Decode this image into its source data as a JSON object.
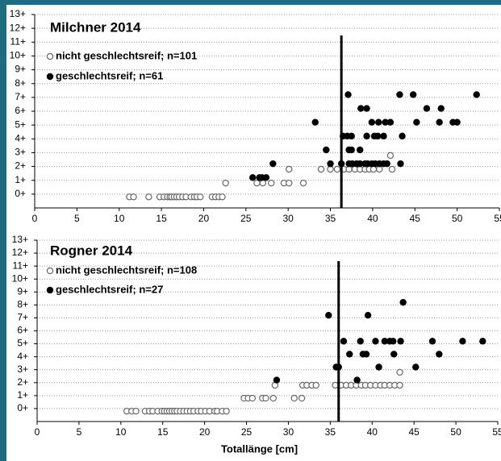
{
  "chart_data": [
    {
      "type": "scatter",
      "title": "Milchner 2014",
      "series": [
        {
          "name": "nicht geschlechtsreif; n=101",
          "color": "#666666",
          "marker": "open",
          "x": [
            11.2,
            11.7,
            13.5,
            14.8,
            15.3,
            15.7,
            16.0,
            16.2,
            16.5,
            16.8,
            17.1,
            17.5,
            17.9,
            18.5,
            18.9,
            19.2,
            19.6,
            21.0,
            21.4,
            21.8,
            22.2,
            22.6,
            26.3,
            27.0,
            28.0,
            29.5,
            30.1,
            31.8,
            30.1,
            33.9,
            35.0,
            35.8,
            36.6,
            37.2,
            37.9,
            38.5,
            39.1,
            39.6,
            40.1,
            40.8,
            42.3,
            42.1
          ],
          "values": [
            -0.2,
            -0.2,
            -0.2,
            -0.2,
            -0.2,
            -0.2,
            -0.2,
            -0.2,
            -0.2,
            -0.2,
            -0.2,
            -0.2,
            -0.2,
            -0.2,
            -0.2,
            -0.2,
            -0.2,
            -0.2,
            -0.2,
            -0.2,
            -0.2,
            0.8,
            0.8,
            0.8,
            0.8,
            0.8,
            0.8,
            0.8,
            1.8,
            1.8,
            1.8,
            1.8,
            1.8,
            1.8,
            1.8,
            1.8,
            1.8,
            1.8,
            1.8,
            1.8,
            1.8,
            2.8
          ]
        },
        {
          "name": "geschlechtsreif; n=61",
          "color": "#000000",
          "marker": "filled",
          "x": [
            25.8,
            26.6,
            26.9,
            27.4,
            28.2,
            35.0,
            36.3,
            37.2,
            37.6,
            38.1,
            38.5,
            39.1,
            39.4,
            39.9,
            40.3,
            40.8,
            41.3,
            41.7,
            43.3,
            34.5,
            37.2,
            37.5,
            38.5,
            36.5,
            37.0,
            37.5,
            39.3,
            40.2,
            40.6,
            41.3,
            43.5,
            33.2,
            39.9,
            40.7,
            41.5,
            42.1,
            45.2,
            47.9,
            49.5,
            50.0,
            38.6,
            39.3,
            46.4,
            48.1,
            37.1,
            43.2,
            44.8,
            52.3
          ],
          "values": [
            1.2,
            1.2,
            1.2,
            1.2,
            2.2,
            2.2,
            2.2,
            2.2,
            2.2,
            2.2,
            2.2,
            2.2,
            2.2,
            2.2,
            2.2,
            2.2,
            2.2,
            2.2,
            2.2,
            3.2,
            3.2,
            3.2,
            3.2,
            4.2,
            4.2,
            4.2,
            4.2,
            4.2,
            4.2,
            4.2,
            4.2,
            5.2,
            5.2,
            5.2,
            5.2,
            5.2,
            5.2,
            5.2,
            5.2,
            5.2,
            6.2,
            6.2,
            6.2,
            6.2,
            7.2,
            7.2,
            7.2,
            7.2
          ]
        }
      ],
      "vline": 36.3,
      "xlim": [
        0,
        55
      ],
      "xticks": [
        0,
        5,
        10,
        15,
        20,
        25,
        30,
        35,
        40,
        45,
        50,
        55
      ],
      "ylim": [
        -1,
        13
      ],
      "yticks": [
        {
          "value": 0,
          "label": "0+"
        },
        {
          "value": 1,
          "label": "1+"
        },
        {
          "value": 2,
          "label": "2+"
        },
        {
          "value": 3,
          "label": "3+"
        },
        {
          "value": 4,
          "label": "4+"
        },
        {
          "value": 5,
          "label": "5+"
        },
        {
          "value": 6,
          "label": "6+"
        },
        {
          "value": 7,
          "label": "7+"
        },
        {
          "value": 8,
          "label": "8+"
        },
        {
          "value": 9,
          "label": "9+"
        },
        {
          "value": 10,
          "label": "10+"
        },
        {
          "value": 11,
          "label": "11+"
        },
        {
          "value": 12,
          "label": "12+"
        },
        {
          "value": 13,
          "label": "13+"
        }
      ],
      "grid": true
    },
    {
      "type": "scatter",
      "title": "Rogner 2014",
      "xlabel": "Totallänge [cm]",
      "series": [
        {
          "name": "nicht geschlechtsreif; n=108",
          "color": "#666666",
          "marker": "open",
          "x": [
            10.7,
            11.3,
            11.8,
            12.9,
            13.4,
            13.8,
            14.4,
            14.9,
            15.2,
            15.5,
            15.8,
            16.1,
            16.4,
            16.7,
            17.1,
            17.5,
            17.9,
            18.3,
            18.7,
            19.2,
            19.6,
            20.1,
            20.6,
            21.2,
            21.5,
            22.1,
            22.6,
            24.7,
            25.2,
            25.7,
            26.9,
            27.3,
            28.2,
            30.7,
            31.6,
            28.4,
            31.7,
            32.2,
            32.8,
            33.3,
            35.6,
            36.3,
            36.9,
            37.5,
            38.1,
            38.7,
            39.2,
            39.8,
            40.4,
            41.0,
            41.5,
            42.1,
            42.7,
            43.3,
            43.3
          ],
          "values": [
            -0.2,
            -0.2,
            -0.2,
            -0.2,
            -0.2,
            -0.2,
            -0.2,
            -0.2,
            -0.2,
            -0.2,
            -0.2,
            -0.2,
            -0.2,
            -0.2,
            -0.2,
            -0.2,
            -0.2,
            -0.2,
            -0.2,
            -0.2,
            -0.2,
            -0.2,
            -0.2,
            -0.2,
            -0.2,
            -0.2,
            -0.2,
            0.8,
            0.8,
            0.8,
            0.8,
            0.8,
            0.8,
            0.8,
            0.8,
            1.8,
            1.8,
            1.8,
            1.8,
            1.8,
            1.8,
            1.8,
            1.8,
            1.8,
            1.8,
            1.8,
            1.8,
            1.8,
            1.8,
            1.8,
            1.8,
            1.8,
            1.8,
            1.8,
            2.8
          ]
        },
        {
          "name": "geschlechtsreif; n=27",
          "color": "#000000",
          "marker": "filled",
          "x": [
            28.6,
            38.2,
            35.7,
            36.0,
            40.8,
            45.2,
            37.3,
            38.9,
            39.3,
            42.6,
            48.0,
            36.6,
            38.6,
            40.4,
            41.5,
            42.1,
            42.5,
            43.4,
            47.2,
            50.8,
            53.2,
            34.8,
            39.5,
            43.7
          ],
          "values": [
            2.2,
            2.2,
            3.2,
            3.2,
            3.2,
            3.2,
            4.2,
            4.2,
            4.2,
            4.2,
            4.2,
            5.2,
            5.2,
            5.2,
            5.2,
            5.2,
            5.2,
            5.2,
            5.2,
            5.2,
            5.2,
            7.2,
            7.2,
            8.2
          ]
        }
      ],
      "vline": 36.0,
      "xlim": [
        0,
        55
      ],
      "xticks": [
        0,
        5,
        10,
        15,
        20,
        25,
        30,
        35,
        40,
        45,
        50,
        55
      ],
      "ylim": [
        -1,
        13
      ],
      "yticks": [
        {
          "value": 0,
          "label": "0+"
        },
        {
          "value": 1,
          "label": "1+"
        },
        {
          "value": 2,
          "label": "2+"
        },
        {
          "value": 3,
          "label": "3+"
        },
        {
          "value": 4,
          "label": "4+"
        },
        {
          "value": 5,
          "label": "5+"
        },
        {
          "value": 6,
          "label": "6+"
        },
        {
          "value": 7,
          "label": "7+"
        },
        {
          "value": 8,
          "label": "8+"
        },
        {
          "value": 9,
          "label": "9+"
        },
        {
          "value": 10,
          "label": "10+"
        },
        {
          "value": 11,
          "label": "11+"
        },
        {
          "value": 12,
          "label": "12+"
        },
        {
          "value": 13,
          "label": "13+"
        }
      ],
      "grid": true
    }
  ]
}
